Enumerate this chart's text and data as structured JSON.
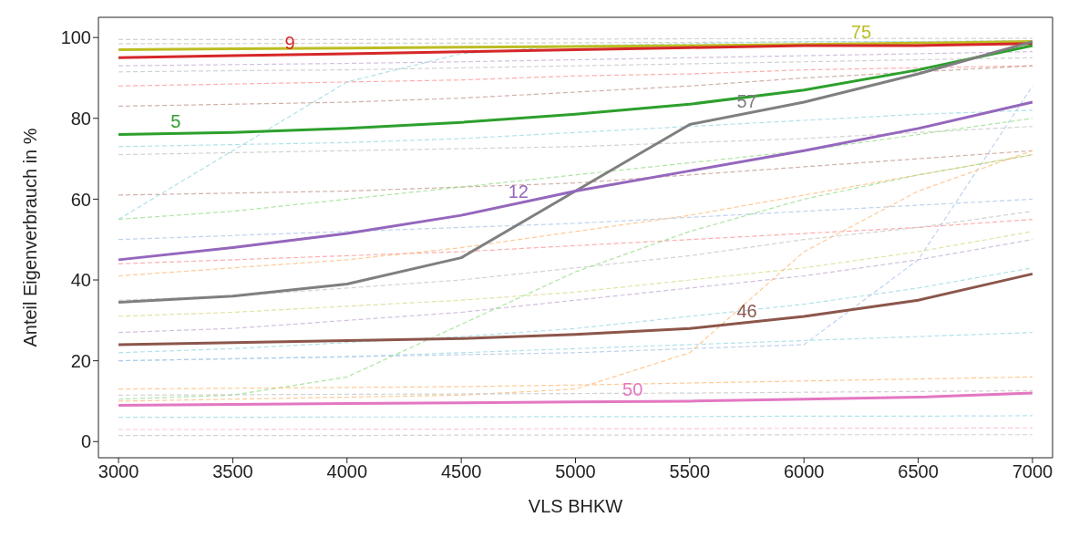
{
  "chart_data": {
    "type": "line",
    "xlabel": "VLS BHKW",
    "ylabel": "Anteil Eigenverbrauch in %",
    "x": [
      3000,
      3500,
      4000,
      4500,
      5000,
      5500,
      6000,
      6500,
      7000
    ],
    "xlim": [
      2912,
      7088
    ],
    "xticks": [
      3000,
      3500,
      4000,
      4500,
      5000,
      5500,
      6000,
      6500,
      7000
    ],
    "ylim": [
      -4,
      105
    ],
    "yticks": [
      0,
      20,
      40,
      60,
      80,
      100
    ],
    "grid": false,
    "legend": false,
    "marker": "none",
    "series": [
      {
        "color": "#c7c7c7",
        "line_style": "dashed",
        "values": [
          99.5,
          99.5,
          99.5,
          99.6,
          99.6,
          99.7,
          99.7,
          99.8,
          99.8
        ]
      },
      {
        "color": "#c7c7c7",
        "line_style": "dashed",
        "values": [
          98.5,
          98.5,
          98.6,
          98.6,
          98.7,
          98.8,
          98.9,
          99,
          99.2
        ]
      },
      {
        "color": "#c5b0d5",
        "line_style": "dashed",
        "values": [
          93,
          93.3,
          93.6,
          94,
          94.5,
          95,
          95.5,
          96,
          96.5
        ]
      },
      {
        "color": "#c7c7c7",
        "line_style": "dashed",
        "values": [
          91.5,
          91.8,
          92,
          92.5,
          93,
          93.5,
          94,
          94.5,
          95
        ]
      },
      {
        "color": "#ff9896",
        "line_style": "dashed",
        "values": [
          88,
          88.5,
          89,
          89.5,
          90.5,
          91,
          92,
          92.5,
          93
        ]
      },
      {
        "color": "#c49c94",
        "line_style": "dashed",
        "values": [
          83,
          83.5,
          84,
          85,
          86.5,
          88,
          90,
          91.5,
          93
        ]
      },
      {
        "color": "#9edae5",
        "line_style": "dashed",
        "values": [
          55,
          72,
          89,
          96,
          98,
          98.5,
          99,
          99,
          99.2
        ]
      },
      {
        "color": "#9edae5",
        "line_style": "dashed",
        "values": [
          73,
          73.5,
          74,
          75,
          76.5,
          78,
          79.5,
          81,
          82
        ]
      },
      {
        "color": "#c7c7c7",
        "line_style": "dashed",
        "values": [
          71,
          71.5,
          72,
          72.5,
          73,
          74,
          75,
          76.5,
          78
        ]
      },
      {
        "color": "#c49c94",
        "line_style": "dashed",
        "values": [
          61,
          61.5,
          62,
          63,
          64,
          66,
          68,
          70,
          72
        ]
      },
      {
        "color": "#98df8a",
        "line_style": "dashed",
        "values": [
          55,
          57,
          60,
          63,
          66,
          69,
          72,
          76,
          80
        ]
      },
      {
        "color": "#aec7e8",
        "line_style": "dashed",
        "values": [
          50,
          51,
          52,
          53,
          54,
          55.5,
          57,
          58.5,
          60
        ]
      },
      {
        "color": "#ff9896",
        "line_style": "dashed",
        "values": [
          44,
          45,
          46,
          47,
          48.5,
          50,
          51.5,
          53,
          55
        ]
      },
      {
        "color": "#ffbb78",
        "line_style": "dashed",
        "values": [
          41,
          43,
          45,
          48,
          52,
          56,
          61,
          66,
          71
        ]
      },
      {
        "color": "#c7c7c7",
        "line_style": "dashed",
        "values": [
          35,
          36,
          38,
          40,
          43,
          46,
          50,
          53,
          57
        ]
      },
      {
        "color": "#dbdb8d",
        "line_style": "dashed",
        "values": [
          31,
          32,
          33.5,
          35,
          37,
          40,
          43,
          47,
          52
        ]
      },
      {
        "color": "#c5b0d5",
        "line_style": "dashed",
        "values": [
          27,
          28,
          30,
          32,
          35,
          38,
          41,
          45,
          50
        ]
      },
      {
        "color": "#9edae5",
        "line_style": "dashed",
        "values": [
          22,
          23,
          24.5,
          26,
          28,
          31,
          34,
          38,
          43
        ]
      },
      {
        "color": "#9edae5",
        "line_style": "dashed",
        "values": [
          20,
          20.5,
          21,
          22,
          23,
          24,
          25,
          26,
          27
        ]
      },
      {
        "color": "#98df8a",
        "line_style": "dashed",
        "values": [
          10.5,
          11.5,
          16,
          29,
          42,
          52,
          60,
          66,
          71
        ]
      },
      {
        "color": "#aec7e8",
        "line_style": "dashed",
        "values": [
          20,
          20.5,
          21,
          21.5,
          22,
          23,
          24,
          45,
          88
        ]
      },
      {
        "color": "#ffbb78",
        "line_style": "dashed",
        "values": [
          10,
          10.5,
          11,
          11.5,
          13,
          22,
          47,
          62,
          72
        ]
      },
      {
        "color": "#ffbb78",
        "line_style": "dashed",
        "values": [
          13,
          13.2,
          13.4,
          13.6,
          14,
          14.5,
          15,
          15.5,
          16
        ]
      },
      {
        "color": "#c7c7c7",
        "line_style": "dashed",
        "values": [
          11.5,
          11.6,
          11.7,
          11.8,
          11.9,
          12,
          12.2,
          12.4,
          12.6
        ]
      },
      {
        "color": "#9edae5",
        "line_style": "dashed",
        "values": [
          6,
          6,
          6.1,
          6.1,
          6.2,
          6.2,
          6.3,
          6.3,
          6.4
        ]
      },
      {
        "color": "#f7b6d2",
        "line_style": "dashed",
        "values": [
          3,
          3,
          3.1,
          3.1,
          3.2,
          3.2,
          3.3,
          3.3,
          3.4
        ]
      },
      {
        "color": "#c7c7c7",
        "line_style": "dashed",
        "values": [
          1.5,
          1.5,
          1.5,
          1.6,
          1.6,
          1.6,
          1.7,
          1.7,
          1.7
        ]
      },
      {
        "name": "75",
        "color": "#bcbd22",
        "line_style": "solid",
        "values": [
          97,
          97.2,
          97.4,
          97.6,
          97.8,
          98,
          98.3,
          98.6,
          99
        ]
      },
      {
        "name": "9",
        "color": "#d62728",
        "line_style": "solid",
        "values": [
          95,
          95.5,
          96,
          96.5,
          97,
          97.5,
          98,
          98,
          98.5
        ]
      },
      {
        "name": "5",
        "color": "#2ca02c",
        "line_style": "solid",
        "values": [
          76,
          76.5,
          77.5,
          79,
          81,
          83.5,
          87,
          92,
          98
        ]
      },
      {
        "name": "57",
        "color": "#7f7f7f",
        "line_style": "solid",
        "values": [
          34.5,
          36,
          39,
          45.5,
          62,
          78.5,
          84,
          91,
          99
        ]
      },
      {
        "name": "12",
        "color": "#9467bd",
        "line_style": "solid",
        "values": [
          45,
          48,
          51.5,
          56,
          62,
          67,
          72,
          77.5,
          84
        ]
      },
      {
        "name": "46",
        "color": "#8c564b",
        "line_style": "solid",
        "values": [
          24,
          24.5,
          25,
          25.5,
          26.5,
          28,
          31,
          35,
          41.5
        ]
      },
      {
        "name": "50",
        "color": "#e377c2",
        "line_style": "solid",
        "values": [
          9,
          9.2,
          9.4,
          9.6,
          9.8,
          10,
          10.5,
          11,
          12
        ]
      }
    ]
  }
}
